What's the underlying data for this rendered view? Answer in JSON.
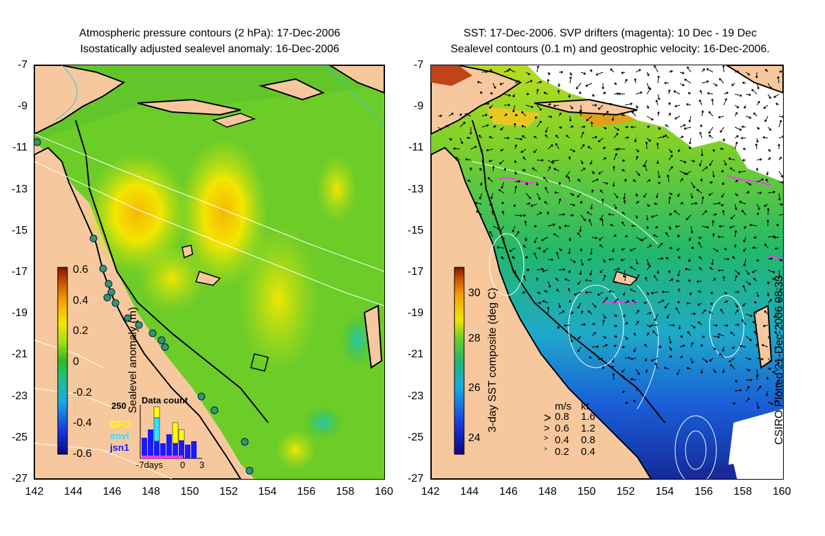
{
  "left_panel": {
    "title_line1": "Atmospheric pressure contours (2 hPa): 17-Dec-2006",
    "title_line2": "Isostatically adjusted sealevel anomaly: 16-Dec-2006",
    "colorbar": {
      "label": "Sealevel anomaly (m)",
      "ticks": [
        "0.6",
        "0.4",
        "0.2",
        "0",
        "-0.2",
        "-0.4",
        "-0.6"
      ],
      "range": [
        -0.6,
        0.6
      ]
    },
    "data_count": {
      "title": "Data count",
      "y_max_label": "250",
      "legend": [
        {
          "name": "GFO",
          "color": "#ffff00"
        },
        {
          "name": "envi",
          "color": "#33e0ff"
        },
        {
          "name": "jsn1",
          "color": "#1a1aff"
        }
      ],
      "x_labels": [
        "-7days",
        "0",
        "3"
      ]
    }
  },
  "right_panel": {
    "title_line1": "SST: 17-Dec-2006. SVP drifters (magenta): 10 Dec - 19 Dec",
    "title_line2": "Sealevel contours (0.1 m) and geostrophic velocity: 16-Dec-2006.",
    "colorbar": {
      "label": "3-day SST composite (deg C)",
      "ticks": [
        "30",
        "28",
        "26",
        "24"
      ],
      "range": [
        23,
        31
      ]
    },
    "velocity_legend": {
      "header_ms": "m/s",
      "header_kt": "kt",
      "rows": [
        {
          "ms": "0.8",
          "kt": "1.6"
        },
        {
          "ms": "0.6",
          "kt": "1.2"
        },
        {
          "ms": "0.4",
          "kt": "0.8"
        },
        {
          "ms": "0.2",
          "kt": "0.4"
        }
      ]
    },
    "credit": "CSIRO Plotted 21-Dec-2006 08:33"
  },
  "axes": {
    "y_ticks": [
      "-7",
      "-9",
      "-11",
      "-13",
      "-15",
      "-17",
      "-19",
      "-21",
      "-23",
      "-25",
      "-27"
    ],
    "x_ticks": [
      "142",
      "144",
      "146",
      "148",
      "150",
      "152",
      "154",
      "156",
      "158",
      "160"
    ],
    "lon_range": [
      142,
      160
    ],
    "lat_range": [
      -27,
      -7
    ]
  },
  "colors": {
    "land": "#f7c89d",
    "sla_colormap": [
      "#2a0a8c",
      "#1f33d8",
      "#1a9be0",
      "#22c9b8",
      "#22b830",
      "#7fd622",
      "#f2e600",
      "#f7b800",
      "#e07a00",
      "#b43a00",
      "#7a1a00"
    ],
    "drifter": "#ff33ff",
    "contour": "#ffffff"
  }
}
